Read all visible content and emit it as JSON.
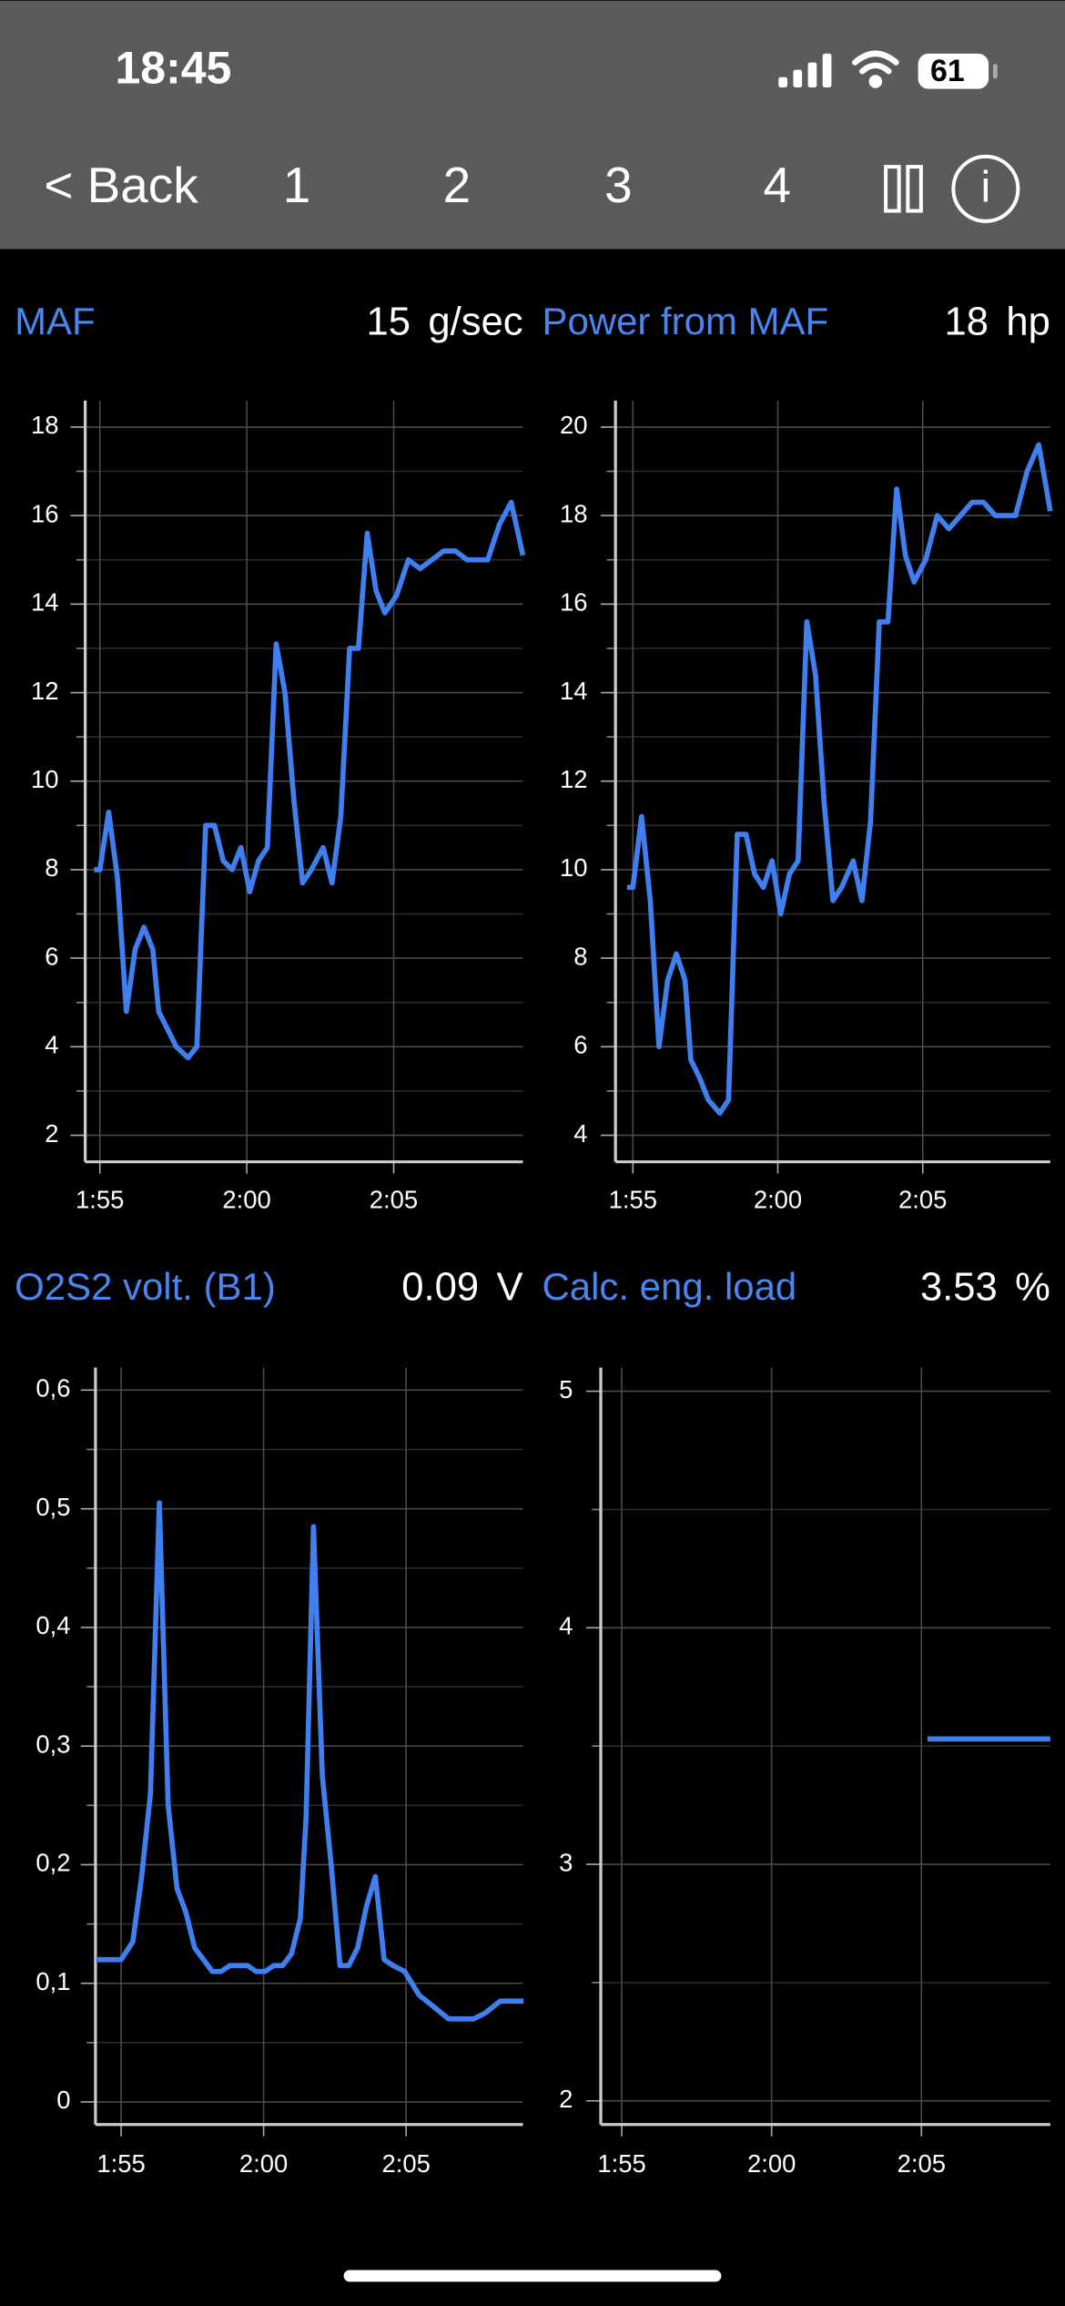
{
  "status_bar": {
    "time": "18:45",
    "battery": 61
  },
  "nav": {
    "back": "< Back",
    "pages": [
      "1",
      "2",
      "3",
      "4"
    ],
    "info": "i"
  },
  "chart_data": [
    {
      "type": "line",
      "title": "MAF",
      "reading": 15,
      "unit": "g/sec",
      "color": "#3f7ff0",
      "x": [
        114.8,
        115,
        115.3,
        115.6,
        115.9,
        116.2,
        116.5,
        116.8,
        117,
        117.3,
        117.6,
        118,
        118.3,
        118.6,
        118.9,
        119.2,
        119.5,
        119.8,
        120.1,
        120.4,
        120.7,
        121,
        121.3,
        121.6,
        121.9,
        122.2,
        122.6,
        122.9,
        123.2,
        123.5,
        123.8,
        124.1,
        124.4,
        124.7,
        125.1,
        125.5,
        125.9,
        126.3,
        126.7,
        127.1,
        127.5,
        127.9,
        128.2,
        128.6,
        129,
        129.4
      ],
      "values": [
        8,
        8,
        9.3,
        7.8,
        4.8,
        6.2,
        6.7,
        6.2,
        4.8,
        4.4,
        4,
        3.75,
        4,
        9,
        9,
        8.2,
        8,
        8.5,
        7.5,
        8.2,
        8.5,
        13.1,
        12,
        9.6,
        7.7,
        8,
        8.5,
        7.7,
        9.2,
        13,
        13,
        15.6,
        14.3,
        13.8,
        14.2,
        15,
        14.8,
        15,
        15.2,
        15.2,
        15,
        15,
        15,
        15.8,
        16.3,
        15.1
      ],
      "xlim": [
        114.5,
        129.4
      ],
      "xticks": [
        {
          "value": 115,
          "label": "1:55"
        },
        {
          "value": 120,
          "label": "2:00"
        },
        {
          "value": 125,
          "label": "2:05"
        }
      ],
      "ylim": [
        1.4,
        18.6
      ],
      "yticks": [
        2,
        4,
        6,
        8,
        10,
        12,
        14,
        16,
        18
      ],
      "minor_yticks": [
        3,
        5,
        7,
        9,
        11,
        13,
        15,
        17
      ],
      "grid": true
    },
    {
      "type": "line",
      "title": "Power from MAF",
      "reading": 18,
      "unit": "hp",
      "color": "#3f7ff0",
      "x": [
        114.8,
        115,
        115.3,
        115.6,
        115.9,
        116.2,
        116.5,
        116.8,
        117,
        117.3,
        117.6,
        118,
        118.3,
        118.6,
        118.9,
        119.2,
        119.5,
        119.8,
        120.1,
        120.4,
        120.7,
        121,
        121.3,
        121.6,
        121.9,
        122.2,
        122.6,
        122.9,
        123.2,
        123.5,
        123.8,
        124.1,
        124.4,
        124.7,
        125.1,
        125.5,
        125.9,
        126.3,
        126.7,
        127.1,
        127.5,
        127.9,
        128.2,
        128.6,
        129,
        129.4
      ],
      "values": [
        9.6,
        9.6,
        11.2,
        9.3,
        6,
        7.5,
        8.1,
        7.5,
        5.7,
        5.3,
        4.8,
        4.5,
        4.8,
        10.8,
        10.8,
        9.9,
        9.6,
        10.2,
        9,
        9.9,
        10.2,
        15.6,
        14.4,
        11.5,
        9.3,
        9.6,
        10.2,
        9.3,
        11.1,
        15.6,
        15.6,
        18.6,
        17.1,
        16.5,
        17,
        18,
        17.7,
        18,
        18.3,
        18.3,
        18,
        18,
        18,
        19,
        19.6,
        18.1
      ],
      "xlim": [
        114.4,
        129.4
      ],
      "xticks": [
        {
          "value": 115,
          "label": "1:55"
        },
        {
          "value": 120,
          "label": "2:00"
        },
        {
          "value": 125,
          "label": "2:05"
        }
      ],
      "ylim": [
        3.4,
        20.6
      ],
      "yticks": [
        4,
        6,
        8,
        10,
        12,
        14,
        16,
        18,
        20
      ],
      "minor_yticks": [
        5,
        7,
        9,
        11,
        13,
        15,
        17,
        19
      ],
      "grid": true
    },
    {
      "type": "line",
      "title": "O2S2 volt. (B1)",
      "reading": 0.09,
      "unit": "V",
      "color": "#3f7ff0",
      "x": [
        114.12,
        115,
        115.41,
        115.72,
        116.03,
        116.34,
        116.65,
        116.96,
        117.27,
        117.58,
        117.89,
        118.2,
        118.51,
        118.81,
        119.12,
        119.43,
        119.74,
        120.05,
        120.36,
        120.67,
        120.98,
        121.29,
        121.49,
        121.75,
        122.06,
        122.37,
        122.68,
        122.99,
        123.3,
        123.61,
        123.92,
        124.23,
        124.54,
        124.95,
        125.46,
        125.98,
        126.49,
        127.01,
        127.37,
        127.78,
        128.3,
        129.12
      ],
      "values": [
        0.12,
        0.12,
        0.135,
        0.19,
        0.26,
        0.505,
        0.25,
        0.18,
        0.16,
        0.13,
        0.12,
        0.11,
        0.11,
        0.115,
        0.115,
        0.115,
        0.11,
        0.11,
        0.115,
        0.115,
        0.125,
        0.155,
        0.24,
        0.485,
        0.275,
        0.2,
        0.115,
        0.115,
        0.13,
        0.165,
        0.19,
        0.12,
        0.115,
        0.11,
        0.09,
        0.08,
        0.07,
        0.07,
        0.07,
        0.075,
        0.085,
        0.085
      ],
      "xlim": [
        114.1,
        129.1
      ],
      "xticks": [
        {
          "value": 115,
          "label": "1:55"
        },
        {
          "value": 120,
          "label": "2:00"
        },
        {
          "value": 125,
          "label": "2:05"
        }
      ],
      "ylim": [
        -0.019,
        0.619
      ],
      "yticks": [
        0,
        {
          "value": 0.1,
          "label": "0,1"
        },
        {
          "value": 0.2,
          "label": "0,2"
        },
        {
          "value": 0.3,
          "label": "0,3"
        },
        {
          "value": 0.4,
          "label": "0,4"
        },
        {
          "value": 0.5,
          "label": "0,5"
        },
        {
          "value": 0.6,
          "label": "0,6"
        }
      ],
      "minor_yticks": [
        0.05,
        0.15,
        0.25,
        0.35,
        0.45,
        0.55
      ],
      "grid": true
    },
    {
      "type": "line",
      "title": "Calc. eng. load",
      "reading": 3.53,
      "unit": "%",
      "color": "#3f7ff0",
      "x": [
        125.2,
        129.3
      ],
      "values": [
        3.53,
        3.53
      ],
      "xlim": [
        114.3,
        129.3
      ],
      "xticks": [
        {
          "value": 115,
          "label": "1:55"
        },
        {
          "value": 120,
          "label": "2:00"
        },
        {
          "value": 125,
          "label": "2:05"
        }
      ],
      "ylim": [
        1.9,
        5.1
      ],
      "yticks": [
        2,
        3,
        4,
        5
      ],
      "minor_yticks": [
        2.5,
        3.5,
        4.5
      ],
      "grid": true
    }
  ]
}
